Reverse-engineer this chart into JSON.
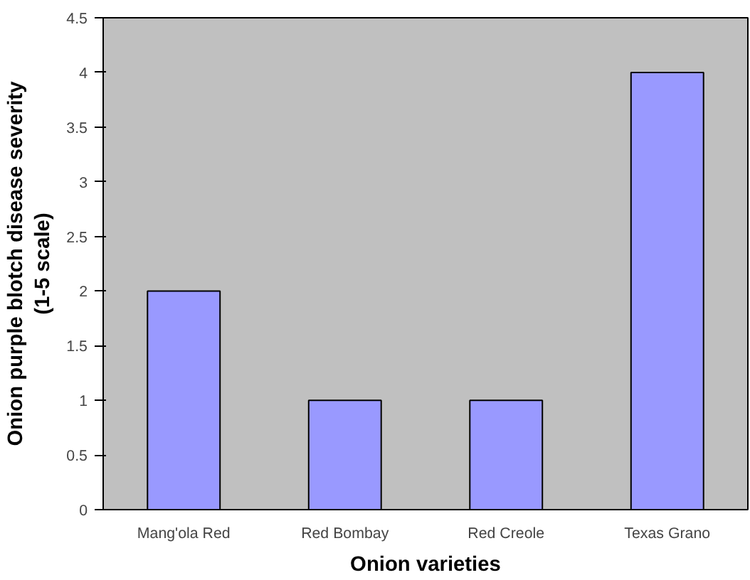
{
  "chart_data": {
    "type": "bar",
    "xlabel": "Onion varieties",
    "ylabel": "Onion purple blotch disease severity\n(1-5 scale)",
    "categories": [
      "Mang'ola Red",
      "Red Bombay",
      "Red Creole",
      "Texas Grano"
    ],
    "values": [
      2,
      1,
      1,
      4
    ],
    "color": "#9999ff",
    "ylim": [
      0,
      4.5
    ],
    "yticks": [
      0,
      0.5,
      1,
      1.5,
      2,
      2.5,
      3,
      3.5,
      4,
      4.5
    ],
    "grid": false,
    "legend": false
  }
}
